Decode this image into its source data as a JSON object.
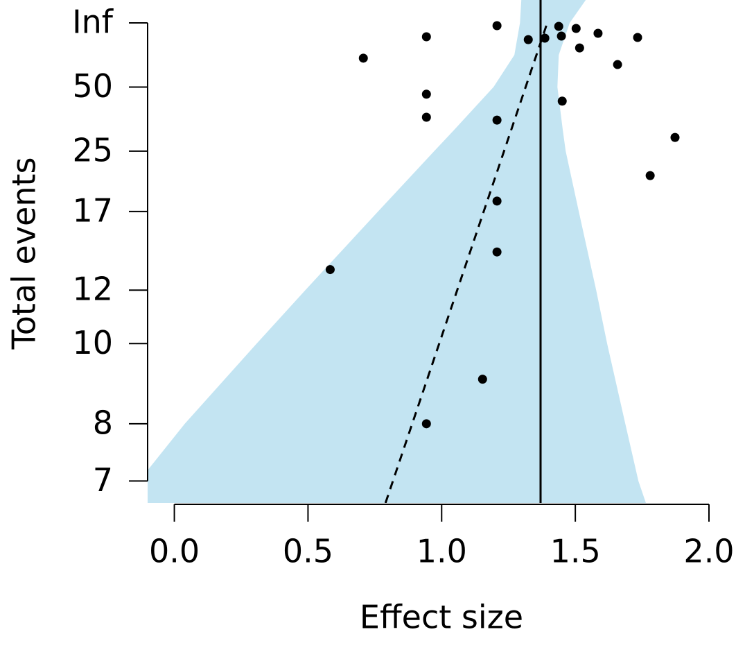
{
  "chart_data": {
    "type": "funnel",
    "x_label": "Effect size",
    "y_label": "Total events",
    "y_scale": "reciprocal",
    "xlim": [
      -0.1,
      2.0
    ],
    "xticks": [
      {
        "value": 0,
        "label": "0.0"
      },
      0.5,
      {
        "value": 1,
        "label": "1.0"
      },
      1.5,
      {
        "value": 2,
        "label": "2.0"
      }
    ],
    "ylim": [
      -140,
      6.68
    ],
    "yticks": [
      {
        "value": "Infinity",
        "label": "Inf"
      },
      50,
      25,
      17,
      12,
      10,
      8,
      7
    ],
    "points": {
      "color": "#000000",
      "x": [
        1.207,
        0.943,
        0.707,
        0.943,
        0.943,
        1.207,
        1.207,
        1.207,
        0.583,
        1.153,
        0.943,
        1.324,
        1.386,
        1.438,
        1.448,
        1.503,
        1.516,
        1.585,
        1.733,
        1.658,
        1.451,
        1.873,
        1.78
      ],
      "values": [
        1155,
        231,
        91,
        45,
        34,
        33,
        18,
        14,
        13,
        9,
        8,
        192,
        210,
        924,
        243,
        578,
        128,
        308,
        220,
        77,
        41,
        28,
        21
      ]
    },
    "band": {
      "color": "#c3e4f2",
      "events": [
        -140,
        "Infinity",
        100,
        50,
        30,
        25,
        17,
        12,
        10,
        8,
        7,
        6.68
      ],
      "lower": [
        1.298,
        1.293,
        1.272,
        1.194,
        1.047,
        0.972,
        0.762,
        0.49,
        0.308,
        0.039,
        -0.132,
        -0.21
      ],
      "upper": [
        1.539,
        1.479,
        1.438,
        1.433,
        1.453,
        1.464,
        1.513,
        1.578,
        1.619,
        1.687,
        1.736,
        1.764
      ]
    },
    "reference_line": 1.37,
    "regression_line": {
      "x": [
        0.79,
        1.395
      ],
      "events": [
        6.68,
        "Infinity"
      ]
    }
  }
}
